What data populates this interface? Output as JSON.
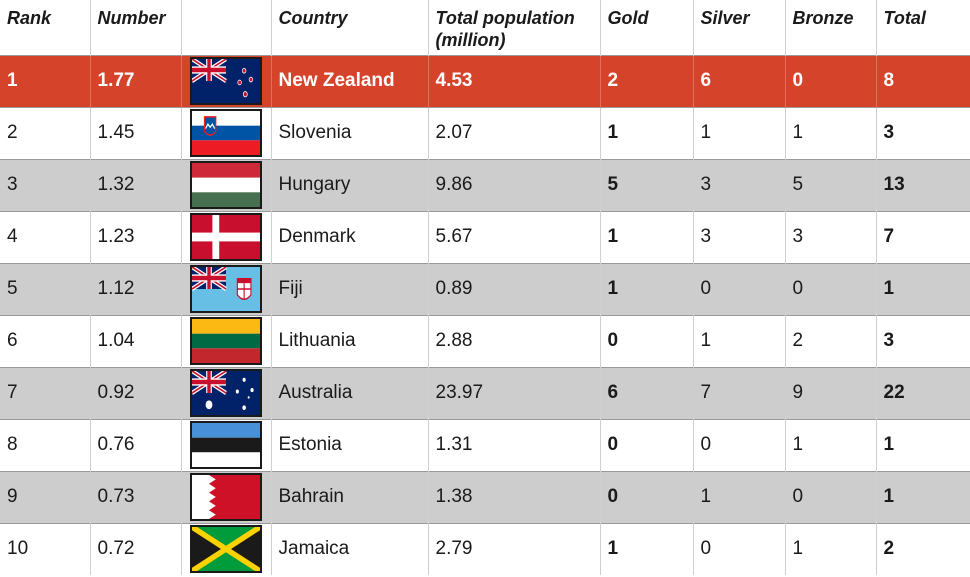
{
  "headers": {
    "rank": "Rank",
    "number": "Number",
    "flag": "",
    "country": "Country",
    "population": "Total population (million)",
    "gold": "Gold",
    "silver": "Silver",
    "bronze": "Bronze",
    "total": "Total"
  },
  "colors": {
    "highlight": "#d5432b",
    "stripe": "#cdcdcd"
  },
  "rows": [
    {
      "rank": "1",
      "number": "1.77",
      "flag_icon": "new-zealand-flag-icon",
      "country": "New Zealand",
      "population": "4.53",
      "gold": "2",
      "silver": "6",
      "bronze": "0",
      "total": "8"
    },
    {
      "rank": "2",
      "number": "1.45",
      "flag_icon": "slovenia-flag-icon",
      "country": "Slovenia",
      "population": "2.07",
      "gold": "1",
      "silver": "1",
      "bronze": "1",
      "total": "3"
    },
    {
      "rank": "3",
      "number": "1.32",
      "flag_icon": "hungary-flag-icon",
      "country": "Hungary",
      "population": "9.86",
      "gold": "5",
      "silver": "3",
      "bronze": "5",
      "total": "13"
    },
    {
      "rank": "4",
      "number": "1.23",
      "flag_icon": "denmark-flag-icon",
      "country": "Denmark",
      "population": "5.67",
      "gold": "1",
      "silver": "3",
      "bronze": "3",
      "total": "7"
    },
    {
      "rank": "5",
      "number": "1.12",
      "flag_icon": "fiji-flag-icon",
      "country": "Fiji",
      "population": "0.89",
      "gold": "1",
      "silver": "0",
      "bronze": "0",
      "total": "1"
    },
    {
      "rank": "6",
      "number": "1.04",
      "flag_icon": "lithuania-flag-icon",
      "country": "Lithuania",
      "population": "2.88",
      "gold": "0",
      "silver": "1",
      "bronze": "2",
      "total": "3"
    },
    {
      "rank": "7",
      "number": "0.92",
      "flag_icon": "australia-flag-icon",
      "country": "Australia",
      "population": "23.97",
      "gold": "6",
      "silver": "7",
      "bronze": "9",
      "total": "22"
    },
    {
      "rank": "8",
      "number": "0.76",
      "flag_icon": "estonia-flag-icon",
      "country": "Estonia",
      "population": "1.31",
      "gold": "0",
      "silver": "0",
      "bronze": "1",
      "total": "1"
    },
    {
      "rank": "9",
      "number": "0.73",
      "flag_icon": "bahrain-flag-icon",
      "country": "Bahrain",
      "population": "1.38",
      "gold": "0",
      "silver": "1",
      "bronze": "0",
      "total": "1"
    },
    {
      "rank": "10",
      "number": "0.72",
      "flag_icon": "jamaica-flag-icon",
      "country": "Jamaica",
      "population": "2.79",
      "gold": "1",
      "silver": "0",
      "bronze": "1",
      "total": "2"
    }
  ]
}
